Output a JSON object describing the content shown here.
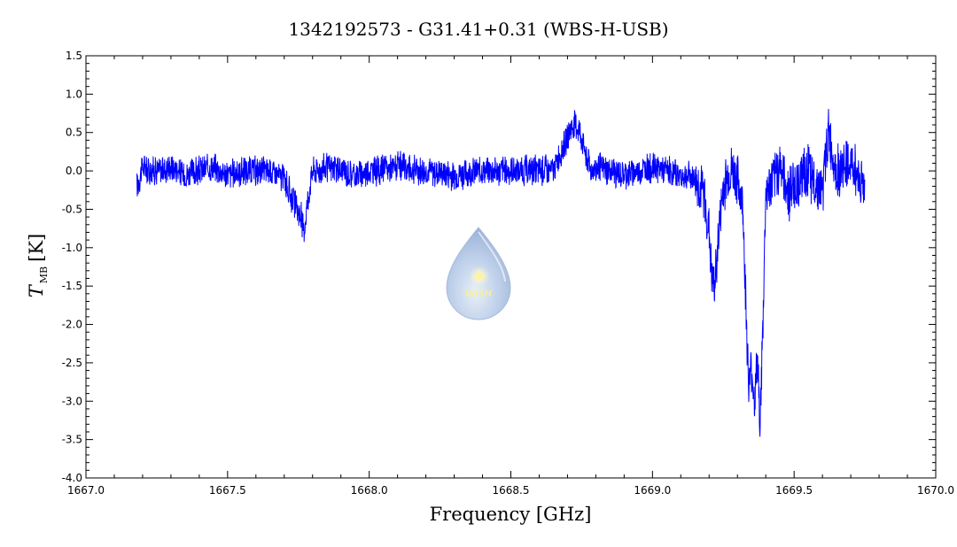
{
  "chart_data": {
    "type": "line",
    "title": "1342192573 - G31.41+0.31 (WBS-H-USB)",
    "xlabel": "Frequency [GHz]",
    "ylabel_main": "T",
    "ylabel_sub": "MB",
    "ylabel_unit": "[K]",
    "xlim": [
      1667.0,
      1670.0
    ],
    "ylim": [
      -4.0,
      1.5
    ],
    "x_ticks": [
      "1667.0",
      "1667.5",
      "1668.0",
      "1668.5",
      "1669.0",
      "1669.5",
      "1670.0"
    ],
    "y_ticks": [
      "1.5",
      "1.0",
      "0.5",
      "0.0",
      "-0.5",
      "-1.0",
      "-1.5",
      "-2.0",
      "-2.5",
      "-3.0",
      "-3.5",
      "-4.0"
    ],
    "grid": false,
    "series": [
      {
        "color": "#0000ff",
        "x": [
          1667.18,
          1667.2,
          1667.25,
          1667.3,
          1667.35,
          1667.4,
          1667.45,
          1667.5,
          1667.55,
          1667.6,
          1667.65,
          1667.7,
          1667.72,
          1667.74,
          1667.76,
          1667.77,
          1667.78,
          1667.8,
          1667.85,
          1667.9,
          1667.95,
          1668.0,
          1668.1,
          1668.2,
          1668.3,
          1668.4,
          1668.5,
          1668.6,
          1668.65,
          1668.7,
          1668.72,
          1668.74,
          1668.76,
          1668.78,
          1668.8,
          1668.85,
          1668.9,
          1668.95,
          1669.0,
          1669.05,
          1669.1,
          1669.15,
          1669.18,
          1669.2,
          1669.21,
          1669.22,
          1669.23,
          1669.25,
          1669.28,
          1669.3,
          1669.32,
          1669.33,
          1669.34,
          1669.35,
          1669.36,
          1669.37,
          1669.38,
          1669.39,
          1669.4,
          1669.42,
          1669.45,
          1669.48,
          1669.5,
          1669.55,
          1669.6,
          1669.62,
          1669.65,
          1669.7,
          1669.75
        ],
        "y": [
          -0.2,
          0.05,
          0.0,
          0.05,
          -0.05,
          0.0,
          0.05,
          -0.05,
          0.0,
          0.0,
          0.0,
          -0.1,
          -0.3,
          -0.45,
          -0.6,
          -0.8,
          -0.45,
          0.0,
          0.05,
          0.0,
          -0.05,
          0.0,
          0.05,
          0.0,
          -0.05,
          0.0,
          0.0,
          0.0,
          0.0,
          0.45,
          0.6,
          0.55,
          0.3,
          0.0,
          0.05,
          0.0,
          -0.05,
          0.0,
          0.05,
          0.0,
          -0.05,
          -0.1,
          -0.3,
          -0.8,
          -1.4,
          -1.5,
          -1.0,
          -0.2,
          0.0,
          -0.1,
          -0.5,
          -1.8,
          -2.8,
          -2.6,
          -3.0,
          -2.5,
          -3.3,
          -2.0,
          -0.3,
          -0.2,
          0.1,
          -0.3,
          -0.2,
          0.0,
          -0.3,
          0.5,
          0.0,
          0.1,
          -0.2
        ]
      }
    ]
  },
  "logo": {
    "text": "WISH"
  }
}
